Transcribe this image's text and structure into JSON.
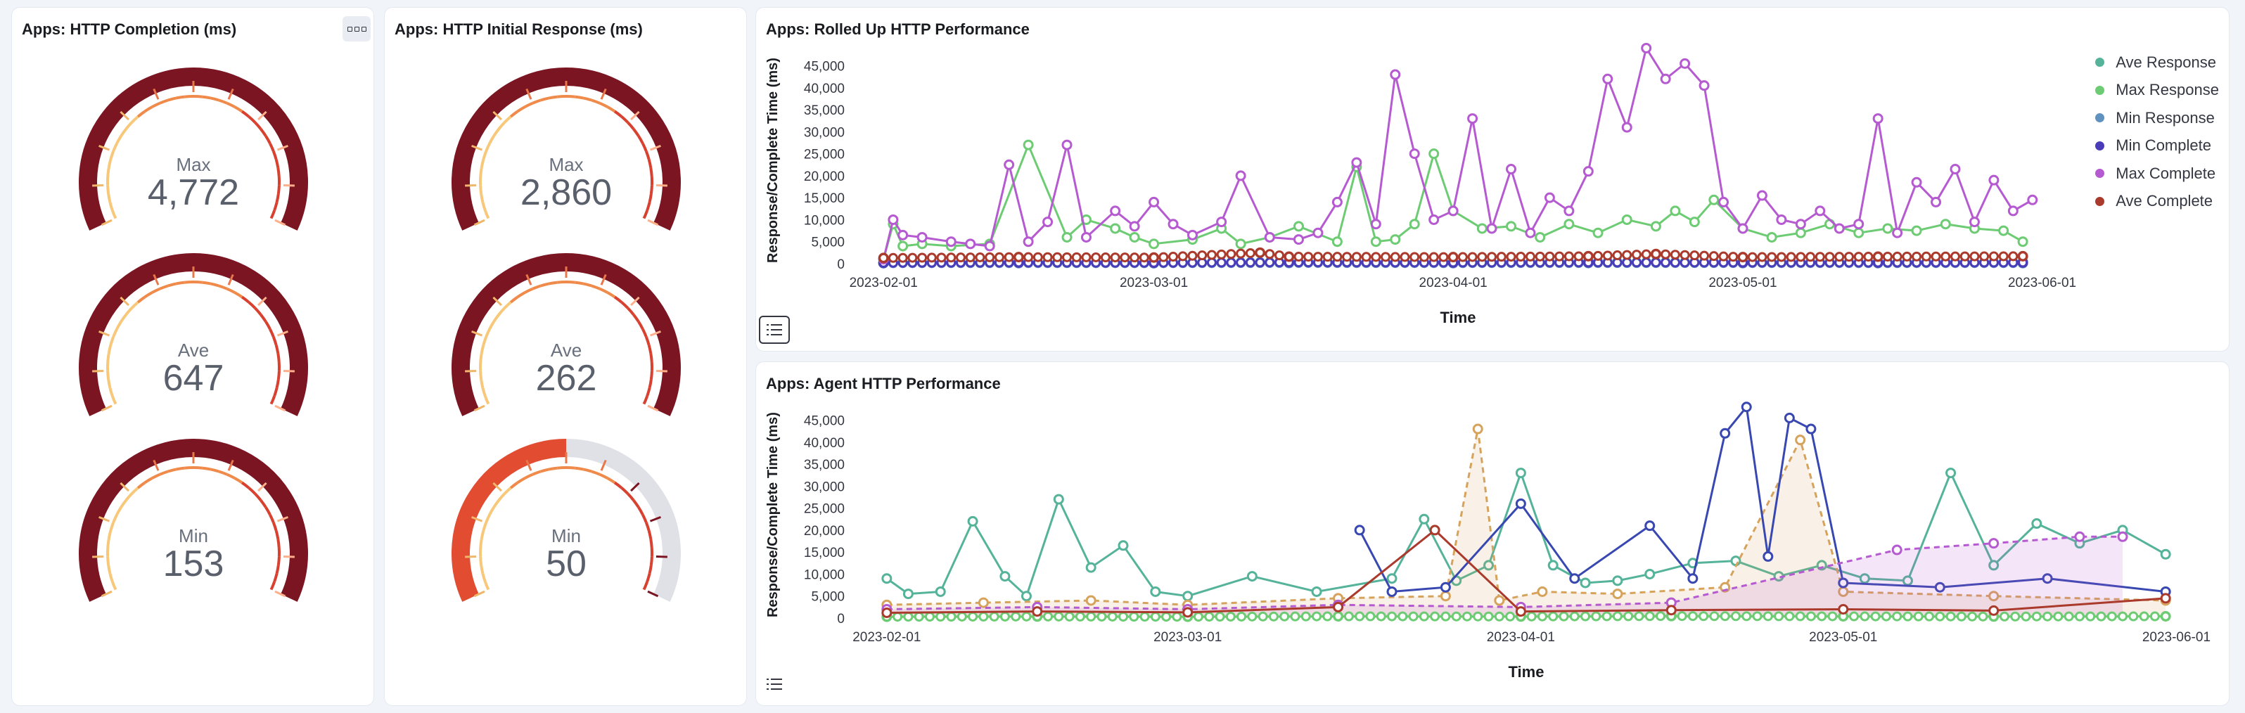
{
  "panels": {
    "completion": {
      "title": "Apps: HTTP Completion (ms)",
      "gauges": [
        {
          "label": "Max",
          "value": "4,772",
          "fill": 1.0
        },
        {
          "label": "Ave",
          "value": "647",
          "fill": 1.0
        },
        {
          "label": "Min",
          "value": "153",
          "fill": 1.0
        }
      ]
    },
    "initial": {
      "title": "Apps: HTTP Initial Response (ms)",
      "gauges": [
        {
          "label": "Max",
          "value": "2,860",
          "fill": 1.0
        },
        {
          "label": "Ave",
          "value": "262",
          "fill": 1.0
        },
        {
          "label": "Min",
          "value": "50",
          "fill": 0.5
        }
      ]
    },
    "rolled": {
      "title": "Apps: Rolled Up HTTP Performance"
    },
    "agent": {
      "title": "Apps: Agent HTTP Performance"
    }
  },
  "colors": {
    "gauge_fill": "#7b1522",
    "gauge_mid": "#e24d32",
    "gauge_track": "#dfe1e6",
    "ave_response": "#54b399",
    "max_response": "#6dcc73",
    "min_response": "#6092c0",
    "min_complete": "#4a3cb8",
    "max_complete": "#b55ad0",
    "ave_complete": "#aa3a2c"
  },
  "chart_data": [
    {
      "type": "line",
      "title": "Apps: Rolled Up HTTP Performance",
      "xlabel": "Time",
      "ylabel": "Response/Complete Time (ms)",
      "x_ticks": [
        "2023-02-01",
        "2023-03-01",
        "2023-04-01",
        "2023-05-01",
        "2023-06-01"
      ],
      "y_ticks": [
        "0",
        "5,000",
        "10,000",
        "15,000",
        "20,000",
        "25,000",
        "30,000",
        "35,000",
        "40,000",
        "45,000"
      ],
      "ylim": [
        0,
        47000
      ],
      "xlim": [
        "2023-01-29",
        "2023-06-03"
      ],
      "legend_position": "top-right",
      "series": [
        {
          "name": "Ave Response",
          "color": "#54b399",
          "x": [
            "2023-02-01",
            "2023-02-15",
            "2023-03-01",
            "2023-03-15",
            "2023-04-01",
            "2023-04-15",
            "2023-05-01",
            "2023-05-15",
            "2023-05-30"
          ],
          "y": [
            300,
            350,
            300,
            400,
            350,
            450,
            400,
            350,
            400
          ]
        },
        {
          "name": "Max Response",
          "color": "#6dcc73",
          "x": [
            "2023-02-01",
            "2023-02-02",
            "2023-02-03",
            "2023-02-05",
            "2023-02-08",
            "2023-02-12",
            "2023-02-16",
            "2023-02-20",
            "2023-02-22",
            "2023-02-25",
            "2023-02-27",
            "2023-03-01",
            "2023-03-05",
            "2023-03-08",
            "2023-03-10",
            "2023-03-13",
            "2023-03-16",
            "2023-03-20",
            "2023-03-22",
            "2023-03-24",
            "2023-03-26",
            "2023-03-28",
            "2023-03-30",
            "2023-04-01",
            "2023-04-04",
            "2023-04-07",
            "2023-04-10",
            "2023-04-13",
            "2023-04-16",
            "2023-04-19",
            "2023-04-22",
            "2023-04-24",
            "2023-04-26",
            "2023-04-28",
            "2023-05-01",
            "2023-05-04",
            "2023-05-07",
            "2023-05-10",
            "2023-05-13",
            "2023-05-16",
            "2023-05-19",
            "2023-05-22",
            "2023-05-25",
            "2023-05-28",
            "2023-05-30"
          ],
          "y": [
            1000,
            9000,
            4000,
            4500,
            4000,
            4500,
            27000,
            6000,
            10000,
            8000,
            6000,
            4500,
            5500,
            8000,
            4500,
            6000,
            8500,
            5000,
            22000,
            5000,
            5500,
            9000,
            25000,
            12000,
            8000,
            8500,
            6000,
            9000,
            7000,
            10000,
            8500,
            12000,
            9500,
            14500,
            8000,
            6000,
            7000,
            9000,
            7000,
            8000,
            7500,
            9000,
            8000,
            7500,
            5000
          ]
        },
        {
          "name": "Min Response",
          "color": "#6092c0",
          "x": [
            "2023-02-01",
            "2023-02-15",
            "2023-03-01",
            "2023-03-15",
            "2023-04-01",
            "2023-04-15",
            "2023-05-01",
            "2023-05-15",
            "2023-05-30"
          ],
          "y": [
            100,
            120,
            100,
            150,
            120,
            140,
            130,
            120,
            130
          ]
        },
        {
          "name": "Min Complete",
          "color": "#4a3cb8",
          "x": [
            "2023-02-01",
            "2023-02-15",
            "2023-03-01",
            "2023-03-15",
            "2023-04-01",
            "2023-04-15",
            "2023-05-01",
            "2023-05-15",
            "2023-05-30"
          ],
          "y": [
            200,
            250,
            200,
            300,
            250,
            280,
            260,
            240,
            260
          ]
        },
        {
          "name": "Max Complete",
          "color": "#b55ad0",
          "x": [
            "2023-02-01",
            "2023-02-02",
            "2023-02-03",
            "2023-02-05",
            "2023-02-08",
            "2023-02-10",
            "2023-02-12",
            "2023-02-14",
            "2023-02-16",
            "2023-02-18",
            "2023-02-20",
            "2023-02-22",
            "2023-02-25",
            "2023-02-27",
            "2023-03-01",
            "2023-03-03",
            "2023-03-05",
            "2023-03-08",
            "2023-03-10",
            "2023-03-13",
            "2023-03-16",
            "2023-03-18",
            "2023-03-20",
            "2023-03-22",
            "2023-03-24",
            "2023-03-26",
            "2023-03-28",
            "2023-03-30",
            "2023-04-01",
            "2023-04-03",
            "2023-04-05",
            "2023-04-07",
            "2023-04-09",
            "2023-04-11",
            "2023-04-13",
            "2023-04-15",
            "2023-04-17",
            "2023-04-19",
            "2023-04-21",
            "2023-04-23",
            "2023-04-25",
            "2023-04-27",
            "2023-04-29",
            "2023-05-01",
            "2023-05-03",
            "2023-05-05",
            "2023-05-07",
            "2023-05-09",
            "2023-05-11",
            "2023-05-13",
            "2023-05-15",
            "2023-05-17",
            "2023-05-19",
            "2023-05-21",
            "2023-05-23",
            "2023-05-25",
            "2023-05-27",
            "2023-05-29",
            "2023-05-31"
          ],
          "y": [
            1000,
            10000,
            6500,
            6000,
            5000,
            4500,
            4000,
            22500,
            5000,
            9500,
            27000,
            6000,
            12000,
            8500,
            14000,
            9000,
            6500,
            9500,
            20000,
            6000,
            5500,
            7000,
            14000,
            23000,
            9000,
            43000,
            25000,
            10000,
            12000,
            33000,
            8000,
            21500,
            7000,
            15000,
            12000,
            21000,
            42000,
            31000,
            49000,
            42000,
            45500,
            40500,
            14000,
            8000,
            15500,
            10000,
            9000,
            12000,
            8000,
            9000,
            33000,
            7000,
            18500,
            14000,
            21500,
            9500,
            19000,
            12000,
            14500
          ]
        },
        {
          "name": "Ave Complete",
          "color": "#aa3a2c",
          "x": [
            "2023-02-01",
            "2023-02-15",
            "2023-03-01",
            "2023-03-12",
            "2023-03-15",
            "2023-04-01",
            "2023-04-15",
            "2023-04-22",
            "2023-05-01",
            "2023-05-15",
            "2023-05-30"
          ],
          "y": [
            1300,
            1500,
            1400,
            2500,
            1600,
            1500,
            1700,
            2200,
            1500,
            1600,
            1700
          ]
        }
      ]
    },
    {
      "type": "line",
      "title": "Apps: Agent HTTP Performance",
      "xlabel": "Time",
      "ylabel": "Response/Complete Time (ms)",
      "x_ticks": [
        "2023-02-01",
        "2023-03-01",
        "2023-04-01",
        "2023-05-01",
        "2023-06-01"
      ],
      "y_ticks": [
        "0",
        "5,000",
        "10,000",
        "15,000",
        "20,000",
        "25,000",
        "30,000",
        "35,000",
        "40,000",
        "45,000"
      ],
      "ylim": [
        0,
        47000
      ],
      "xlim": [
        "2023-01-29",
        "2023-06-03"
      ],
      "series": [
        {
          "color": "#54b399",
          "x": [
            "2023-02-01",
            "2023-02-03",
            "2023-02-06",
            "2023-02-09",
            "2023-02-12",
            "2023-02-14",
            "2023-02-17",
            "2023-02-20",
            "2023-02-23",
            "2023-02-26",
            "2023-03-01",
            "2023-03-07",
            "2023-03-13",
            "2023-03-20",
            "2023-03-23",
            "2023-03-26",
            "2023-03-29",
            "2023-04-01",
            "2023-04-04",
            "2023-04-07",
            "2023-04-10",
            "2023-04-13",
            "2023-04-17",
            "2023-04-21",
            "2023-04-25",
            "2023-04-29",
            "2023-05-03",
            "2023-05-07",
            "2023-05-11",
            "2023-05-15",
            "2023-05-19",
            "2023-05-23",
            "2023-05-27",
            "2023-05-31"
          ],
          "y": [
            9000,
            5500,
            6000,
            22000,
            9500,
            5000,
            27000,
            11500,
            16500,
            6000,
            5000,
            9500,
            6000,
            9000,
            22500,
            8500,
            12000,
            33000,
            12000,
            8000,
            8500,
            10000,
            12500,
            13000,
            9500,
            12000,
            9000,
            8500,
            33000,
            12000,
            21500,
            17000,
            20000,
            14500
          ]
        },
        {
          "color": "#d6a35c",
          "x": [
            "2023-02-01",
            "2023-02-10",
            "2023-02-20",
            "2023-03-01",
            "2023-03-15",
            "2023-03-25",
            "2023-03-28",
            "2023-03-30",
            "2023-04-03",
            "2023-04-10",
            "2023-04-20",
            "2023-04-27",
            "2023-05-01",
            "2023-05-15",
            "2023-05-31"
          ],
          "y": [
            3000,
            3500,
            4000,
            3000,
            4500,
            5000,
            43000,
            4000,
            6000,
            5500,
            7000,
            40500,
            6000,
            5000,
            4000
          ]
        },
        {
          "color": "#3848b0",
          "x": [
            "2023-03-17",
            "2023-03-20",
            "2023-03-25",
            "2023-04-01",
            "2023-04-06",
            "2023-04-13",
            "2023-04-17",
            "2023-04-20",
            "2023-04-22",
            "2023-04-24",
            "2023-04-26",
            "2023-04-28",
            "2023-05-01",
            "2023-05-10",
            "2023-05-20",
            "2023-05-31"
          ],
          "y": [
            20000,
            6000,
            7000,
            26000,
            9000,
            21000,
            9000,
            42000,
            48000,
            14000,
            45500,
            43000,
            8000,
            7000,
            9000,
            6000
          ]
        },
        {
          "color": "#b55ad0",
          "x": [
            "2023-02-01",
            "2023-02-15",
            "2023-03-01",
            "2023-03-15",
            "2023-04-01",
            "2023-04-15",
            "2023-05-06",
            "2023-05-15",
            "2023-05-23",
            "2023-05-27"
          ],
          "y": [
            2000,
            2500,
            2000,
            3000,
            2500,
            3500,
            15500,
            17000,
            18500,
            18500
          ]
        },
        {
          "color": "#6dcc73",
          "x": [
            "2023-02-01",
            "2023-02-15",
            "2023-03-01",
            "2023-03-15",
            "2023-04-01",
            "2023-04-15",
            "2023-05-01",
            "2023-05-15",
            "2023-05-31"
          ],
          "y": [
            300,
            350,
            300,
            400,
            350,
            450,
            400,
            350,
            400
          ]
        },
        {
          "color": "#aa3a2c",
          "x": [
            "2023-02-01",
            "2023-02-15",
            "2023-03-01",
            "2023-03-15",
            "2023-03-24",
            "2023-04-01",
            "2023-04-15",
            "2023-05-01",
            "2023-05-15",
            "2023-05-31"
          ],
          "y": [
            1200,
            1500,
            1300,
            2500,
            20000,
            1500,
            1800,
            2000,
            1700,
            4500
          ]
        }
      ]
    }
  ]
}
